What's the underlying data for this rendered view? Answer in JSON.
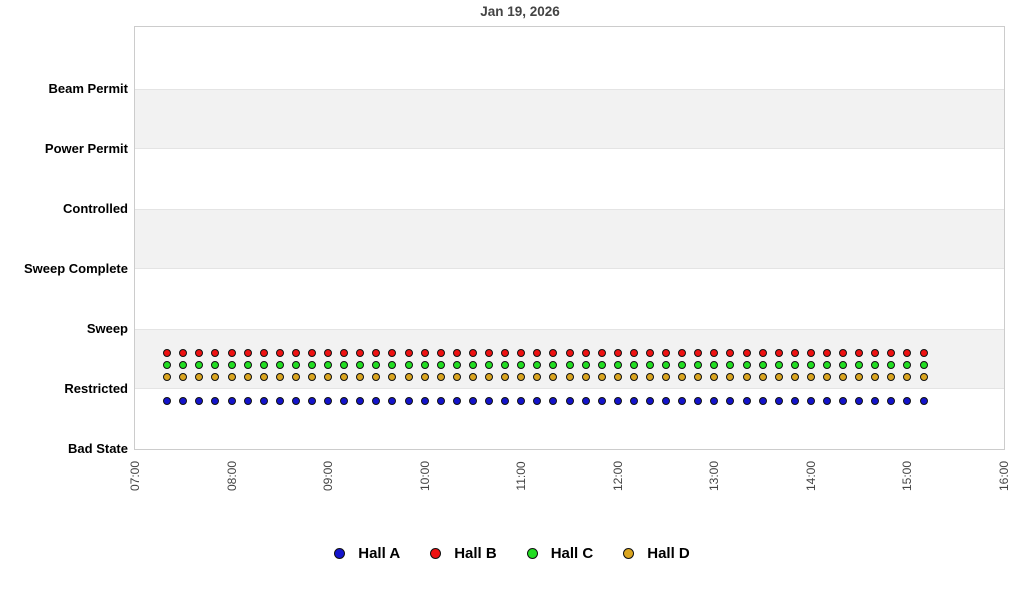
{
  "chart": {
    "title": "Jan 19, 2026"
  },
  "y_axis": {
    "categories_top_to_bottom": [
      "Beam Permit",
      "Power Permit",
      "Controlled",
      "Sweep Complete",
      "Sweep",
      "Restricted",
      "Bad State"
    ]
  },
  "x_axis": {
    "ticks": [
      "07:00",
      "08:00",
      "09:00",
      "10:00",
      "11:00",
      "12:00",
      "13:00",
      "14:00",
      "15:00",
      "16:00"
    ]
  },
  "legend": {
    "items": [
      {
        "label": "Hall A",
        "color": "#1414CC"
      },
      {
        "label": "Hall B",
        "color": "#EE1111"
      },
      {
        "label": "Hall C",
        "color": "#22DD22"
      },
      {
        "label": "Hall D",
        "color": "#DAA520"
      }
    ]
  },
  "colors": {
    "band": "#F2F2F2",
    "band_edge": "#E4E4E4",
    "plot_border": "#CCCCCC",
    "title_text": "#444444",
    "x_tick_text": "#444444",
    "y_tick_text": "#000000",
    "marker_outline": "#111111",
    "background": "#FFFFFF"
  },
  "chart_data": {
    "type": "scatter",
    "title": "Jan 19, 2026",
    "xlabel": "",
    "ylabel": "",
    "x_range": [
      "07:00",
      "16:00"
    ],
    "y_categories_bottom_to_top": [
      "Bad State",
      "Restricted",
      "Sweep",
      "Sweep Complete",
      "Controlled",
      "Power Permit",
      "Beam Permit"
    ],
    "grid": "alternating horizontal category bands",
    "shaded_band_intervals": [
      [
        "Restricted",
        "Sweep"
      ],
      [
        "Sweep Complete",
        "Controlled"
      ],
      [
        "Power Permit",
        "Beam Permit"
      ]
    ],
    "legend_position": "bottom-center",
    "x": [
      "07:20",
      "07:30",
      "07:40",
      "07:50",
      "08:00",
      "08:10",
      "08:20",
      "08:30",
      "08:40",
      "08:50",
      "09:00",
      "09:10",
      "09:20",
      "09:30",
      "09:40",
      "09:50",
      "10:00",
      "10:10",
      "10:20",
      "10:30",
      "10:40",
      "10:50",
      "11:00",
      "11:10",
      "11:20",
      "11:30",
      "11:40",
      "11:50",
      "12:00",
      "12:10",
      "12:20",
      "12:30",
      "12:40",
      "12:50",
      "13:00",
      "13:10",
      "13:20",
      "13:30",
      "13:40",
      "13:50",
      "14:00",
      "14:10",
      "14:20",
      "14:30",
      "14:40",
      "14:50",
      "15:00",
      "15:10"
    ],
    "series": [
      {
        "name": "Hall A",
        "color": "#1414CC",
        "state_all_points": "Restricted",
        "plot_offset_categories": -0.2
      },
      {
        "name": "Hall B",
        "color": "#EE1111",
        "state_all_points": "Restricted",
        "plot_offset_categories": 0.6
      },
      {
        "name": "Hall C",
        "color": "#22DD22",
        "state_all_points": "Restricted",
        "plot_offset_categories": 0.4
      },
      {
        "name": "Hall D",
        "color": "#DAA520",
        "state_all_points": "Restricted",
        "plot_offset_categories": 0.2
      }
    ]
  }
}
